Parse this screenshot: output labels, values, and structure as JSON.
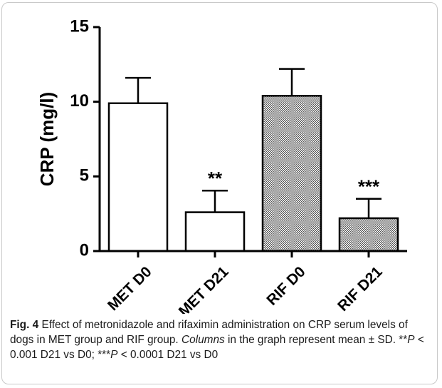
{
  "chart_data": {
    "type": "bar",
    "categories": [
      "MET D0",
      "MET D21",
      "RIF D0",
      "RIF D21"
    ],
    "values": [
      9.9,
      2.6,
      10.4,
      2.2
    ],
    "error": [
      1.7,
      1.45,
      1.8,
      1.3
    ],
    "significance": [
      "",
      "**",
      "",
      "***"
    ],
    "patterns": [
      "none",
      "none",
      "dense-crosshatch",
      "dense-crosshatch"
    ],
    "ylabel": "CRP (mg/l)",
    "ylim": [
      0,
      15
    ],
    "yticks": [
      0,
      5,
      10,
      15
    ],
    "grid": false,
    "legend": "none"
  },
  "caption": {
    "fig_label": "Fig. 4",
    "text_1": "Effect of metronidazole and rifaximin administration on CRP serum levels of dogs in MET group and RIF group.",
    "italic_word": "Columns",
    "text_2": "in the graph represent mean ± SD. **",
    "p_1": "P",
    "text_3": "< 0.001 D21 vs D0; ***",
    "p_2": "P",
    "text_4": "< 0.0001 D21 vs D0"
  }
}
